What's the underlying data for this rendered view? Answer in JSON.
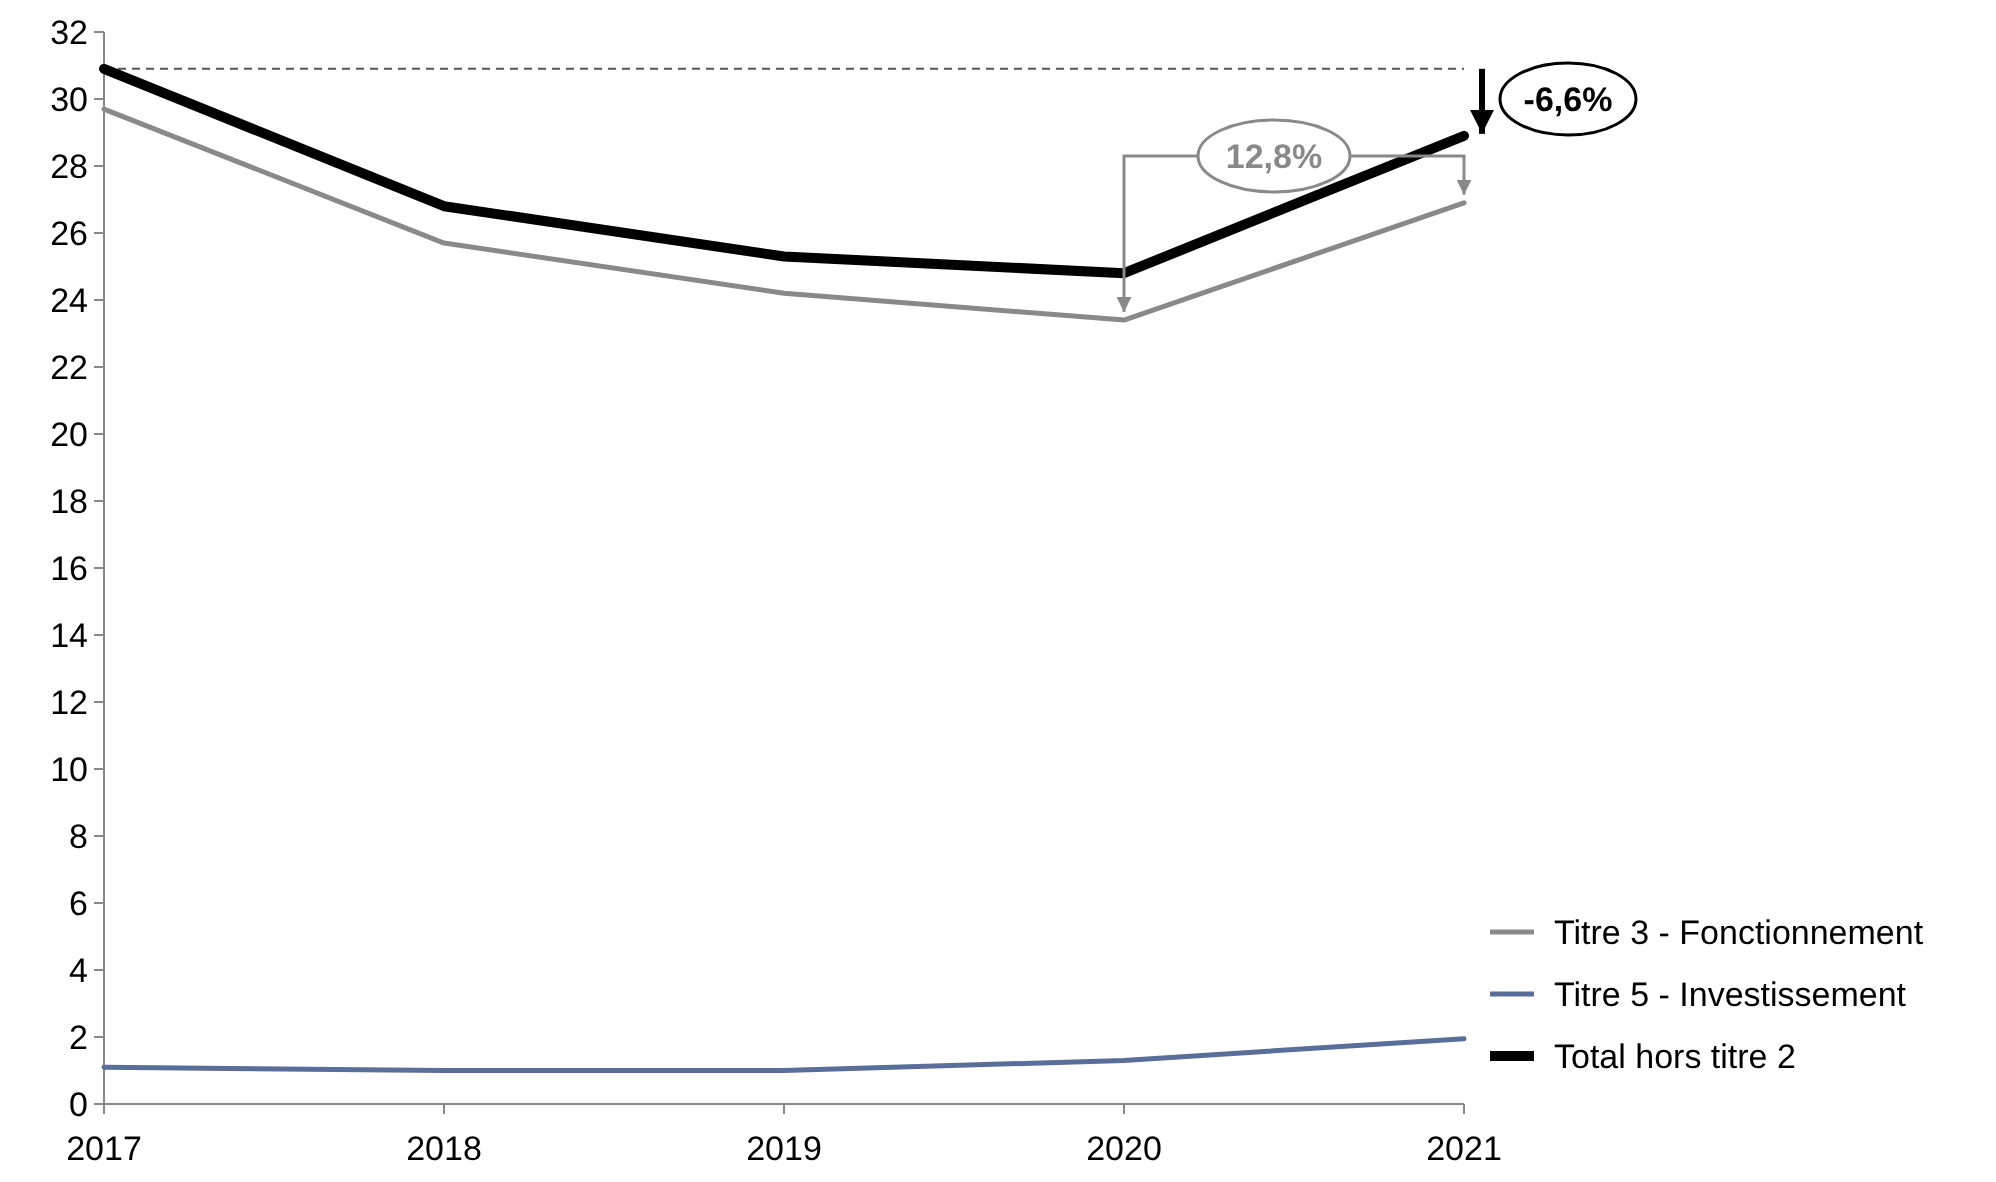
{
  "chart_data": {
    "type": "line",
    "categories": [
      "2017",
      "2018",
      "2019",
      "2020",
      "2021"
    ],
    "series": [
      {
        "name": "Titre 3 - Fonctionnement",
        "color": "#898989",
        "values": [
          29.7,
          25.7,
          24.2,
          23.4,
          26.9
        ]
      },
      {
        "name": "Titre 5 - Investissement",
        "color": "#5a6e9a",
        "values": [
          1.1,
          1.0,
          1.0,
          1.3,
          1.95
        ]
      },
      {
        "name": "Total hors titre 2",
        "color": "#000000",
        "values": [
          30.9,
          26.8,
          25.3,
          24.8,
          28.9
        ]
      }
    ],
    "ylim": [
      0,
      32
    ],
    "yticks": [
      0,
      2,
      4,
      6,
      8,
      10,
      12,
      14,
      16,
      18,
      20,
      22,
      24,
      26,
      28,
      30,
      32
    ],
    "ref_lines": [
      {
        "axis": "y",
        "value": 30.9,
        "color": "#555555",
        "line_style": "dashed"
      }
    ],
    "annotations": [
      "12,8%",
      "-6,6%"
    ],
    "legend": "bottom right",
    "grid": false,
    "marker": "none",
    "line_style": "solid"
  }
}
